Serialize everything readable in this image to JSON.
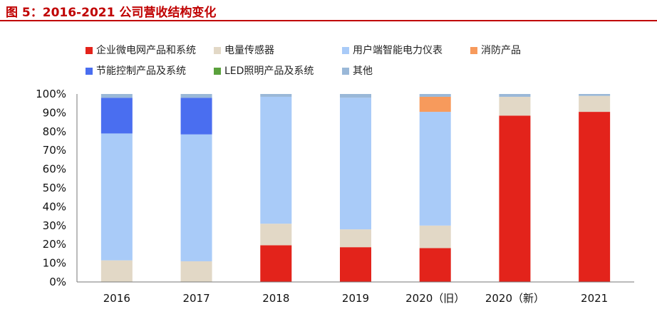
{
  "title": "图 5：2016-2021 公司营收结构变化",
  "chart_data": {
    "type": "bar",
    "stacked": true,
    "percent": true,
    "categories": [
      "2016",
      "2017",
      "2018",
      "2019",
      "2020（旧）",
      "2020（新）",
      "2021"
    ],
    "ylim": [
      0,
      100
    ],
    "yticks": [
      "0%",
      "10%",
      "20%",
      "30%",
      "40%",
      "50%",
      "60%",
      "70%",
      "80%",
      "90%",
      "100%"
    ],
    "series": [
      {
        "name": "企业微电网产品和系统",
        "color": "#e3231b",
        "values": [
          0,
          0,
          19.5,
          18.5,
          18,
          88.5,
          90.5
        ]
      },
      {
        "name": "电量传感器",
        "color": "#e2d8c6",
        "values": [
          11.5,
          11,
          11.5,
          9.5,
          12,
          10,
          8.5
        ]
      },
      {
        "name": "用户端智能电力仪表",
        "color": "#a9cbf8",
        "values": [
          67.5,
          67.5,
          67.5,
          70,
          60.5,
          0,
          0
        ]
      },
      {
        "name": "消防产品",
        "color": "#f79a5c",
        "values": [
          0,
          0,
          0,
          0,
          8,
          0,
          0
        ]
      },
      {
        "name": "节能控制产品及系统",
        "color": "#4a6ef0",
        "values": [
          19,
          19.5,
          0,
          0,
          0,
          0,
          0
        ]
      },
      {
        "name": "LED照明产品及系统",
        "color": "#5aa13c",
        "values": [
          0,
          0,
          0,
          0,
          0,
          0,
          0
        ]
      },
      {
        "name": "其他",
        "color": "#9ab8d8",
        "values": [
          2,
          2,
          1.5,
          2,
          1.5,
          1.5,
          1
        ]
      }
    ],
    "legend_position": "top"
  }
}
